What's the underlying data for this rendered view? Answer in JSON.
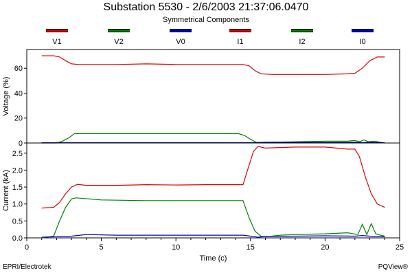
{
  "title": "Substation 5530 - 2/6/2003 21:37:06.0470",
  "subtitle": "Symmetrical Components",
  "footer_left": "EPRI/Electrotek",
  "footer_right": "PQView®",
  "legend": [
    {
      "name": "V1",
      "color": "#e00000"
    },
    {
      "name": "V2",
      "color": "#008000"
    },
    {
      "name": "V0",
      "color": "#0000c8"
    },
    {
      "name": "I1",
      "color": "#e00000"
    },
    {
      "name": "I2",
      "color": "#008000"
    },
    {
      "name": "I0",
      "color": "#0000c8"
    }
  ],
  "chart_data": [
    {
      "type": "line",
      "ylabel": "Voltage (%)",
      "xlim": [
        0,
        25
      ],
      "ylim": [
        0,
        75
      ],
      "yticks": [
        "0",
        "20",
        "40",
        "60"
      ],
      "ytick_values": [
        0,
        20,
        40,
        60
      ],
      "series": [
        {
          "name": "V1",
          "color": "#e00000",
          "x": [
            1,
            1.8,
            2.2,
            2.6,
            3.0,
            3.5,
            6,
            8,
            10,
            12,
            14.5,
            14.9,
            15.3,
            15.7,
            16.5,
            18,
            20,
            21.5,
            22.0,
            22.5,
            23.0,
            23.5,
            24
          ],
          "y": [
            70,
            70,
            69,
            66,
            63.5,
            63,
            63,
            63.5,
            63,
            63,
            63,
            62,
            58,
            55.5,
            55,
            55,
            55,
            55.5,
            56,
            60,
            66,
            69,
            69
          ]
        },
        {
          "name": "V2",
          "color": "#008000",
          "x": [
            1,
            2.0,
            2.4,
            2.8,
            3.2,
            5,
            8,
            10,
            12,
            14.2,
            14.6,
            15.0,
            15.4,
            16,
            18,
            20,
            21.5,
            22.0,
            22.3,
            22.6,
            22.9,
            23.3,
            24
          ],
          "y": [
            0,
            0,
            1.5,
            4,
            7.5,
            7.5,
            7.5,
            7.5,
            7.5,
            7.5,
            6,
            3,
            0.5,
            0.5,
            1,
            1.5,
            1.5,
            2,
            1,
            2.5,
            1,
            1.5,
            0
          ]
        },
        {
          "name": "V0",
          "color": "#0000c8",
          "x": [
            1,
            5,
            10,
            14.5,
            15.5,
            16,
            20,
            22,
            22.5,
            23,
            24
          ],
          "y": [
            0.2,
            0.2,
            0.2,
            0.2,
            0.4,
            0.6,
            0.5,
            0.6,
            0.3,
            0.6,
            0.2
          ]
        }
      ]
    },
    {
      "type": "line",
      "ylabel": "Current (kA)",
      "xlabel": "Time (c)",
      "xlim": [
        0,
        25
      ],
      "ylim": [
        0,
        2.8
      ],
      "yticks": [
        "0.0",
        "0.5",
        "1.0",
        "1.5",
        "2.0",
        "2.5"
      ],
      "ytick_values": [
        0,
        0.5,
        1.0,
        1.5,
        2.0,
        2.5
      ],
      "xticks": [
        "0",
        "5",
        "10",
        "15",
        "20",
        "25"
      ],
      "xtick_values": [
        0,
        5,
        10,
        15,
        20,
        25
      ],
      "series": [
        {
          "name": "I1",
          "color": "#e00000",
          "x": [
            1,
            1.8,
            2.2,
            2.6,
            3.0,
            3.4,
            4,
            6,
            8,
            10,
            12,
            14.5,
            14.8,
            15.2,
            15.5,
            16,
            18,
            20,
            21.5,
            22.0,
            22.3,
            22.7,
            23.1,
            23.5,
            24
          ],
          "y": [
            0.88,
            0.9,
            1.05,
            1.3,
            1.5,
            1.58,
            1.55,
            1.55,
            1.57,
            1.56,
            1.57,
            1.57,
            2.0,
            2.55,
            2.7,
            2.65,
            2.68,
            2.68,
            2.62,
            2.62,
            2.4,
            1.8,
            1.3,
            1.0,
            0.9
          ]
        },
        {
          "name": "I2",
          "color": "#008000",
          "x": [
            1,
            1.8,
            2.2,
            2.6,
            3.0,
            3.3,
            5,
            8,
            10,
            12,
            14.5,
            14.9,
            15.3,
            15.7,
            16,
            17,
            18,
            20,
            21.5,
            22.2,
            22.5,
            22.8,
            23.1,
            23.4,
            23.7,
            24
          ],
          "y": [
            0.0,
            0.05,
            0.5,
            0.9,
            1.15,
            1.18,
            1.12,
            1.1,
            1.1,
            1.1,
            1.1,
            0.6,
            0.2,
            0.05,
            0.03,
            0.08,
            0.1,
            0.12,
            0.15,
            0.1,
            0.4,
            0.1,
            0.42,
            0.12,
            0.08,
            0.05
          ]
        },
        {
          "name": "I0",
          "color": "#0000c8",
          "x": [
            1,
            3,
            4,
            6,
            8,
            10,
            12,
            14.5,
            15,
            15.5,
            16,
            18,
            20,
            22,
            22.5,
            23,
            24
          ],
          "y": [
            0.02,
            0.05,
            0.1,
            0.08,
            0.08,
            0.08,
            0.08,
            0.08,
            0.05,
            0.02,
            0.04,
            0.05,
            0.06,
            0.05,
            0.07,
            0.05,
            0.03
          ]
        }
      ]
    }
  ]
}
